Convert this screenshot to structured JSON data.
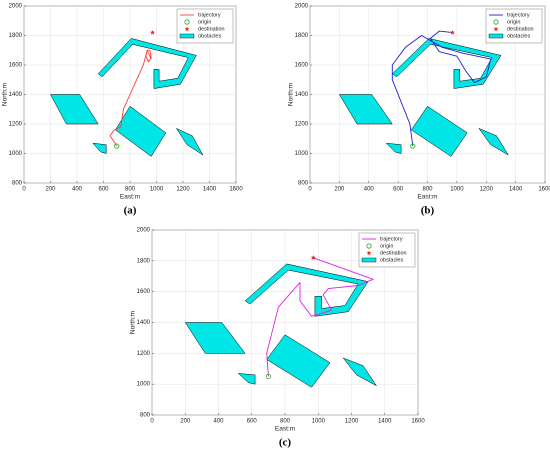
{
  "chart_data": [
    {
      "type": "line",
      "label": "(a)",
      "xlabel": "East:m",
      "ylabel": "North:m",
      "xlim": [
        0,
        1600
      ],
      "ylim": [
        800,
        2000
      ],
      "xticks": [
        0,
        200,
        400,
        600,
        800,
        1000,
        1200,
        1400,
        1600
      ],
      "yticks": [
        800,
        1000,
        1200,
        1400,
        1600,
        1800,
        2000
      ],
      "grid": true,
      "legend": "upper right",
      "series": [
        {
          "name": "trajectory",
          "color": "#ff3b3b",
          "x": [
            700,
            680,
            650,
            680,
            730,
            750,
            800,
            850,
            900,
            930,
            950,
            960,
            940,
            920,
            930,
            960
          ],
          "y": [
            1050,
            1080,
            1120,
            1160,
            1180,
            1300,
            1400,
            1500,
            1600,
            1700,
            1700,
            1650,
            1620,
            1660,
            1700,
            1640
          ]
        },
        {
          "name": "origin",
          "color": "#22aa22",
          "marker": "circle",
          "x": [
            700
          ],
          "y": [
            1050
          ]
        },
        {
          "name": "destination",
          "color": "#ff2222",
          "marker": "star",
          "x": [
            970
          ],
          "y": [
            1820
          ]
        },
        {
          "name": "obstacles",
          "color": "#00e5e5",
          "polygons": [
            {
              "x": [
                200,
                420,
                560,
                320
              ],
              "y": [
                1400,
                1400,
                1200,
                1200
              ]
            },
            {
              "x": [
                520,
                620,
                620,
                580
              ],
              "y": [
                1070,
                1060,
                1000,
                1010
              ]
            },
            {
              "x": [
                800,
                1070,
                960,
                690
              ],
              "y": [
                1320,
                1140,
                980,
                1160
              ]
            },
            {
              "x": [
                1150,
                1270,
                1350,
                1230
              ],
              "y": [
                1170,
                1120,
                990,
                1060
              ]
            },
            {
              "x": [
                560,
                810,
                1300,
                1180,
                980,
                980,
                1020,
                1020,
                1160,
                1240,
                820,
                590
              ],
              "y": [
                1540,
                1780,
                1665,
                1470,
                1440,
                1570,
                1570,
                1490,
                1510,
                1650,
                1740,
                1520
              ]
            }
          ]
        }
      ]
    },
    {
      "type": "line",
      "label": "(b)",
      "xlabel": "East:m",
      "ylabel": "North:m",
      "xlim": [
        0,
        1600
      ],
      "ylim": [
        800,
        2000
      ],
      "xticks": [
        0,
        200,
        400,
        600,
        800,
        1000,
        1200,
        1400,
        1600
      ],
      "yticks": [
        800,
        1000,
        1200,
        1400,
        1600,
        1800,
        2000
      ],
      "grid": true,
      "legend": "upper right",
      "series": [
        {
          "name": "trajectory",
          "color": "#2020cc",
          "x": [
            700,
            680,
            620,
            560,
            560,
            650,
            760,
            900,
            1040,
            1230,
            1200,
            1120,
            1060,
            1000,
            880,
            820,
            880,
            970
          ],
          "y": [
            1050,
            1200,
            1350,
            1500,
            1600,
            1720,
            1800,
            1720,
            1680,
            1640,
            1520,
            1480,
            1560,
            1660,
            1690,
            1780,
            1830,
            1820
          ]
        },
        {
          "name": "origin",
          "color": "#22aa22",
          "marker": "circle",
          "x": [
            700
          ],
          "y": [
            1050
          ]
        },
        {
          "name": "destination",
          "color": "#ff2222",
          "marker": "star",
          "x": [
            970
          ],
          "y": [
            1820
          ]
        },
        {
          "name": "obstacles",
          "color": "#00e5e5",
          "polygons": [
            {
              "x": [
                200,
                420,
                560,
                320
              ],
              "y": [
                1400,
                1400,
                1200,
                1200
              ]
            },
            {
              "x": [
                520,
                620,
                620,
                580
              ],
              "y": [
                1070,
                1060,
                1000,
                1010
              ]
            },
            {
              "x": [
                800,
                1070,
                960,
                690
              ],
              "y": [
                1320,
                1140,
                980,
                1160
              ]
            },
            {
              "x": [
                1150,
                1270,
                1350,
                1230
              ],
              "y": [
                1170,
                1120,
                990,
                1060
              ]
            },
            {
              "x": [
                560,
                810,
                1300,
                1180,
                980,
                980,
                1020,
                1020,
                1160,
                1240,
                820,
                590
              ],
              "y": [
                1540,
                1780,
                1665,
                1470,
                1440,
                1570,
                1570,
                1490,
                1510,
                1650,
                1740,
                1520
              ]
            }
          ]
        }
      ]
    },
    {
      "type": "line",
      "label": "(c)",
      "xlabel": "East:m",
      "ylabel": "North:m",
      "xlim": [
        0,
        1600
      ],
      "ylim": [
        800,
        2000
      ],
      "xticks": [
        0,
        200,
        400,
        600,
        800,
        1000,
        1200,
        1400,
        1600
      ],
      "yticks": [
        800,
        1000,
        1200,
        1400,
        1600,
        1800,
        2000
      ],
      "grid": true,
      "legend": "upper right",
      "series": [
        {
          "name": "trajectory",
          "color": "#e020e0",
          "x": [
            700,
            690,
            760,
            890,
            890,
            960,
            1080,
            1030,
            1060,
            1240,
            1330,
            970
          ],
          "y": [
            1050,
            1200,
            1500,
            1660,
            1540,
            1440,
            1480,
            1580,
            1620,
            1640,
            1680,
            1820
          ]
        },
        {
          "name": "origin",
          "color": "#22aa22",
          "marker": "circle",
          "x": [
            700
          ],
          "y": [
            1050
          ]
        },
        {
          "name": "destination",
          "color": "#ff2222",
          "marker": "star",
          "x": [
            970
          ],
          "y": [
            1820
          ]
        },
        {
          "name": "obstacles",
          "color": "#00e5e5",
          "polygons": [
            {
              "x": [
                200,
                420,
                560,
                320
              ],
              "y": [
                1400,
                1400,
                1200,
                1200
              ]
            },
            {
              "x": [
                520,
                620,
                620,
                580
              ],
              "y": [
                1070,
                1060,
                1000,
                1010
              ]
            },
            {
              "x": [
                800,
                1070,
                960,
                690
              ],
              "y": [
                1320,
                1140,
                980,
                1160
              ]
            },
            {
              "x": [
                1150,
                1270,
                1350,
                1230
              ],
              "y": [
                1170,
                1120,
                990,
                1060
              ]
            },
            {
              "x": [
                560,
                810,
                1300,
                1180,
                980,
                980,
                1020,
                1020,
                1160,
                1240,
                820,
                590
              ],
              "y": [
                1540,
                1780,
                1665,
                1470,
                1440,
                1570,
                1570,
                1490,
                1510,
                1650,
                1740,
                1520
              ]
            }
          ]
        }
      ]
    }
  ]
}
